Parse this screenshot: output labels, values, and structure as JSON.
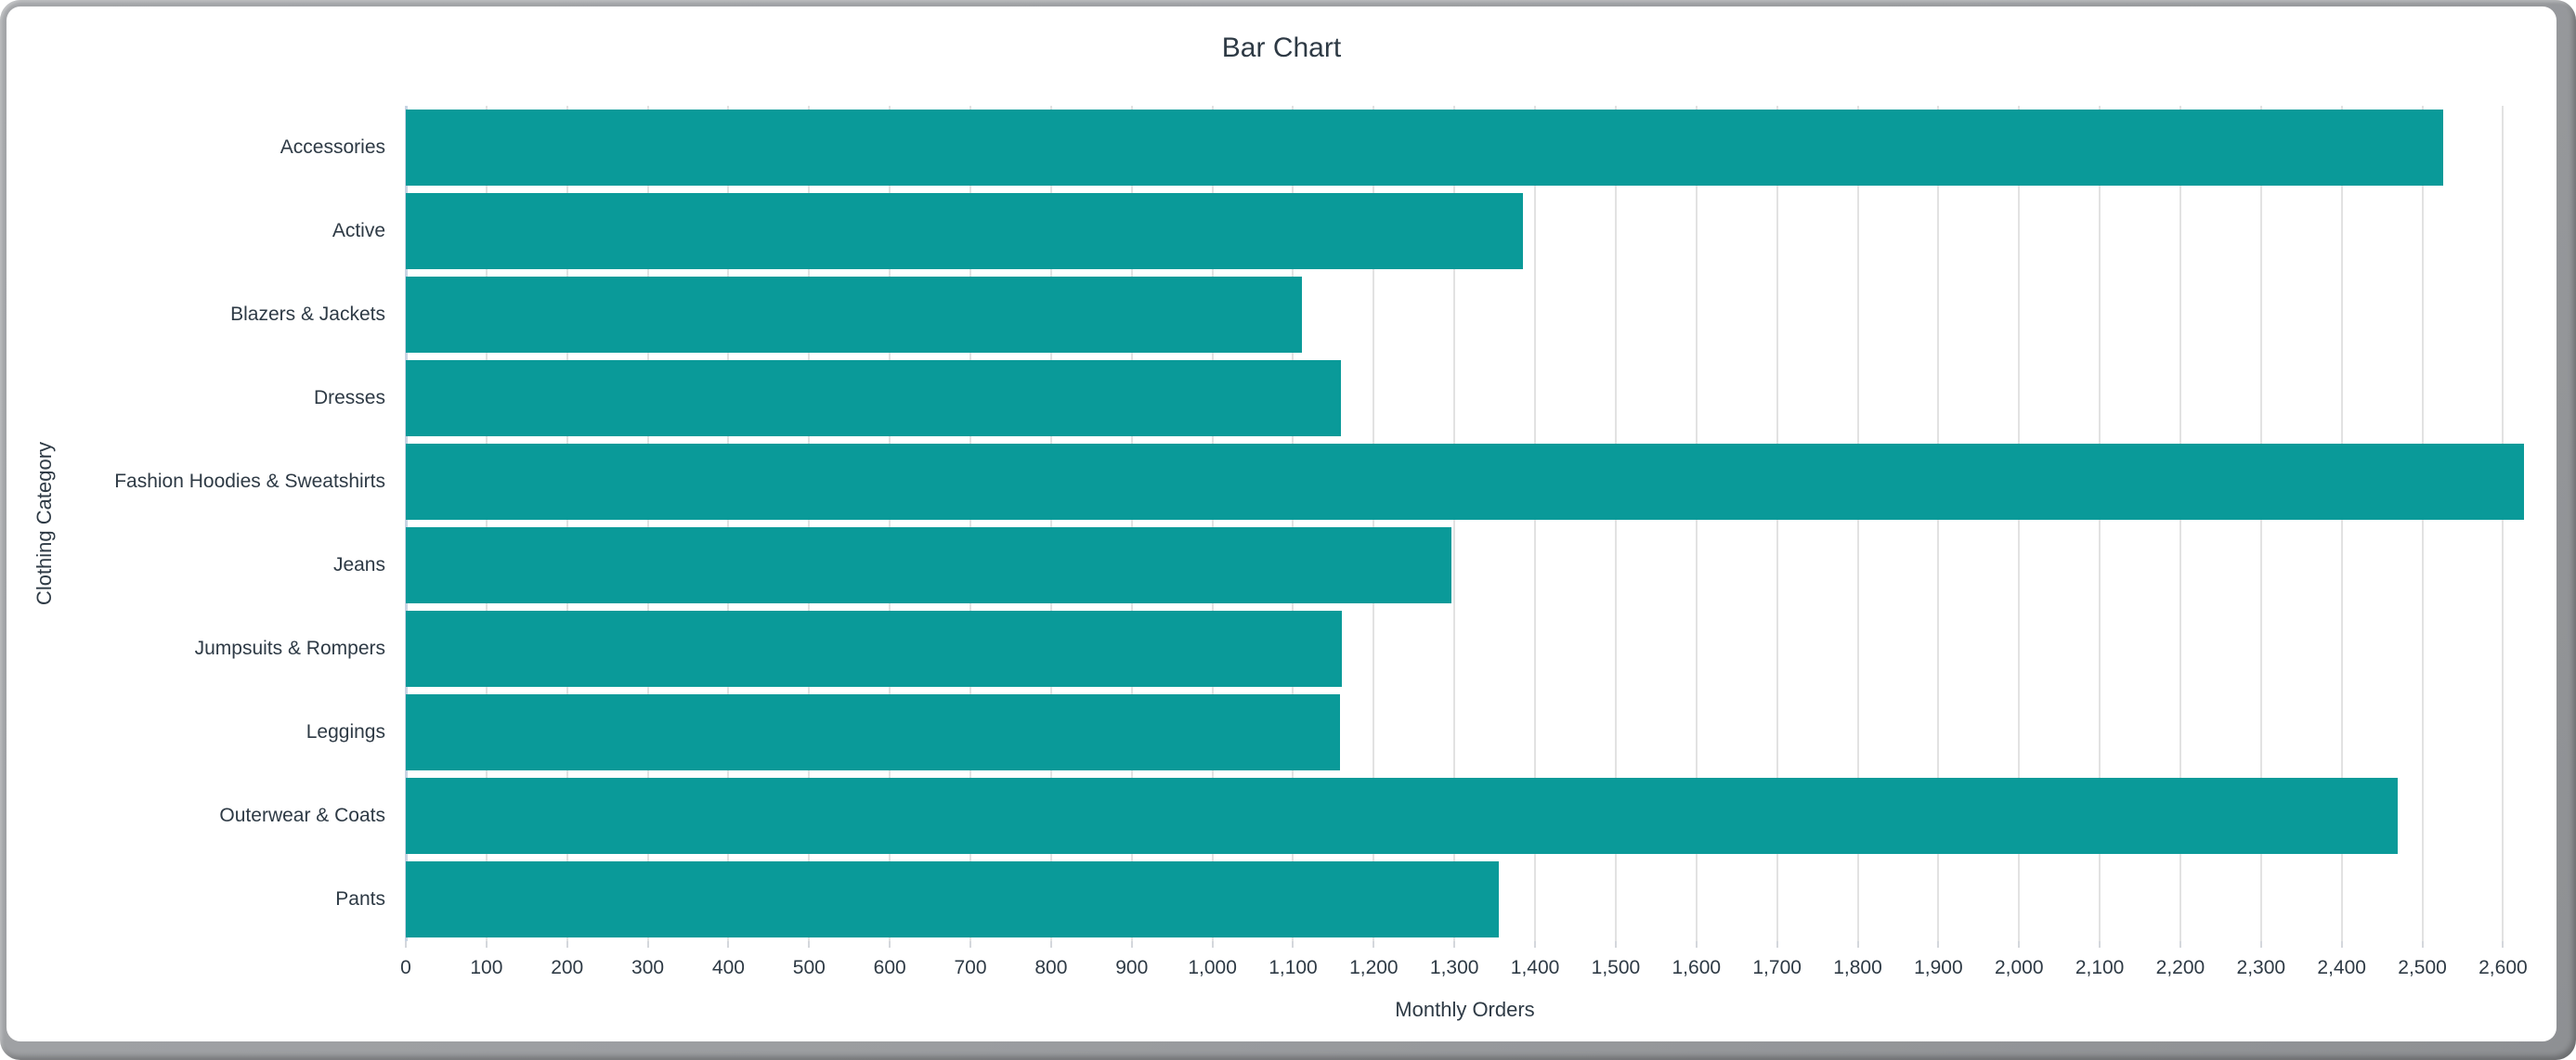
{
  "window": {
    "frame_color": "#9b9da0",
    "background": "#ffffff"
  },
  "chart_data": {
    "type": "bar",
    "orientation": "horizontal",
    "title": "Bar Chart",
    "xlabel": "Monthly Orders",
    "ylabel": "Clothing Category",
    "categories": [
      "Accessories",
      "Active",
      "Blazers & Jackets",
      "Dresses",
      "Fashion Hoodies & Sweatshirts",
      "Jeans",
      "Jumpsuits & Rompers",
      "Leggings",
      "Outerwear & Coats",
      "Pants"
    ],
    "values": [
      2526,
      1385,
      1111,
      1159,
      2626,
      1296,
      1160,
      1158,
      2470,
      1355
    ],
    "xlim": [
      0,
      2626
    ],
    "x_tick_values": [
      0,
      100,
      200,
      300,
      400,
      500,
      600,
      700,
      800,
      900,
      1000,
      1100,
      1200,
      1300,
      1400,
      1500,
      1600,
      1700,
      1800,
      1900,
      2000,
      2100,
      2200,
      2300,
      2400,
      2500,
      2600
    ],
    "x_tick_labels": [
      "0",
      "100",
      "200",
      "300",
      "400",
      "500",
      "600",
      "700",
      "800",
      "900",
      "1,000",
      "1,100",
      "1,200",
      "1,300",
      "1,400",
      "1,500",
      "1,600",
      "1,700",
      "1,800",
      "1,900",
      "2,000",
      "2,100",
      "2,200",
      "2,300",
      "2,400",
      "2,500",
      "2,600"
    ],
    "grid": true,
    "legend": false,
    "bar_color": "#0a9a99",
    "grid_color": "#e2e2e2",
    "zeroline_color": "#c8d4e3",
    "tick_color": "#d4d7dc",
    "text_color": "#2e3a45"
  }
}
